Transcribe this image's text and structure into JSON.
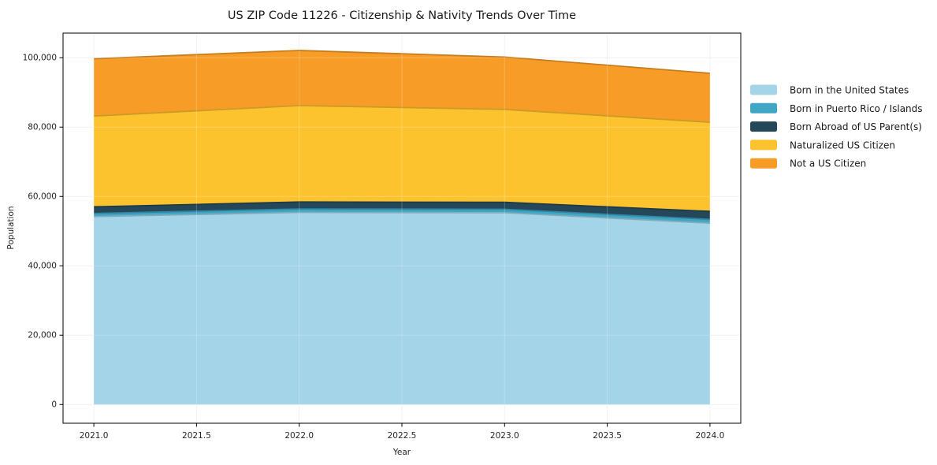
{
  "title": "US ZIP Code 11226 - Citizenship & Nativity Trends Over Time",
  "chart_data": {
    "type": "area",
    "stacked": true,
    "title": "US ZIP Code 11226 - Citizenship & Nativity Trends Over Time",
    "xlabel": "Year",
    "ylabel": "Population",
    "x": [
      2021,
      2022,
      2023,
      2024
    ],
    "series": [
      {
        "name": "Born in the United States",
        "color": "#A4D4E8",
        "values": [
          54200,
          55400,
          55300,
          52300
        ]
      },
      {
        "name": "Born in Puerto Rico / Islands",
        "color": "#3FA6C6",
        "values": [
          900,
          1000,
          1000,
          1100
        ]
      },
      {
        "name": "Born Abroad of US Parent(s)",
        "color": "#24485A",
        "values": [
          1900,
          2000,
          2000,
          2300
        ]
      },
      {
        "name": "Naturalized US Citizen",
        "color": "#FDC32E",
        "values": [
          26200,
          27800,
          26800,
          25700
        ]
      },
      {
        "name": "Not a US Citizen",
        "color": "#F89C28",
        "values": [
          16500,
          15900,
          15100,
          14100
        ]
      }
    ],
    "totals": [
      99700,
      102100,
      100200,
      95500
    ],
    "x_ticks": [
      2021.0,
      2021.5,
      2022.0,
      2022.5,
      2023.0,
      2023.5,
      2024.0
    ],
    "y_ticks": [
      0,
      20000,
      40000,
      60000,
      80000,
      100000
    ],
    "xlim": [
      2020.85,
      2024.15
    ],
    "ylim": [
      -5400,
      107100
    ],
    "grid": true,
    "legend_position": "right-outside",
    "axis_color": "#000000",
    "grid_color": "#e3e3e6",
    "background_color": "#ffffff"
  }
}
